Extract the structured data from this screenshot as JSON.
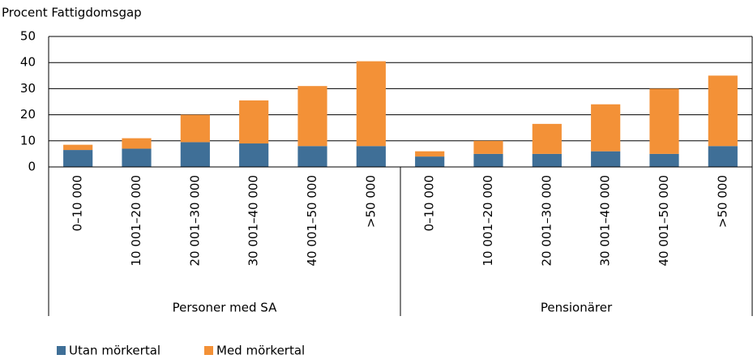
{
  "chart_data": {
    "type": "stacked_bar",
    "y_label": "Procent Fattigdomsgap",
    "categories": [
      "0–10 000",
      "10 001–20 000",
      "20 001–30 000",
      "30 001–40 000",
      "40 001–50 000",
      ">50 000",
      "0–10 000",
      "10 001–20 000",
      "20 001–30 000",
      "30 001–40 000",
      "40 001–50 000",
      ">50 000"
    ],
    "groups": [
      "Personer med SA",
      "Pensionärer"
    ],
    "series": [
      {
        "name": "Utan mörkertal",
        "color": "#3f6f97",
        "values": [
          6.5,
          7,
          9.5,
          9,
          8,
          8,
          4,
          5,
          5,
          6,
          5,
          8
        ]
      },
      {
        "name": "Med mörkertal",
        "color": "#f39137",
        "values": [
          2,
          4,
          10.5,
          16.5,
          23,
          32.5,
          2,
          5,
          11.5,
          18,
          25,
          27
        ]
      }
    ],
    "ylim": [
      0,
      50
    ],
    "yticks": [
      0,
      10,
      20,
      30,
      40,
      50
    ],
    "grid": true
  }
}
